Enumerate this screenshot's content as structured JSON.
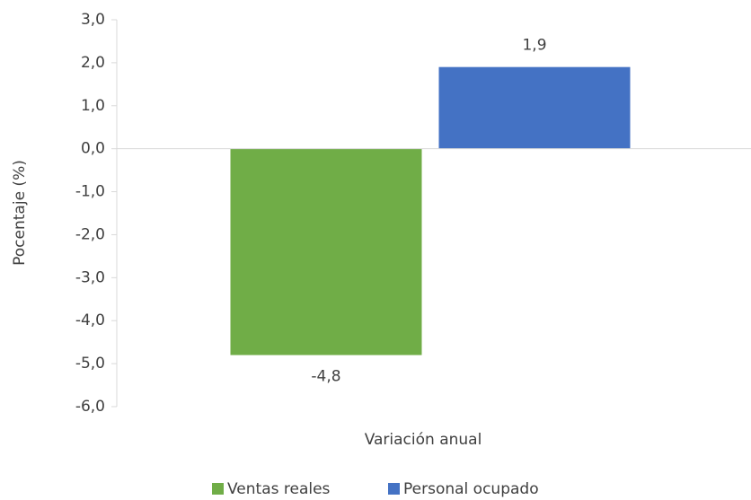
{
  "chart_data": {
    "type": "bar",
    "y_label": "Pocentaje (%)",
    "categories": [
      "Variación anual"
    ],
    "series": [
      {
        "name": "Ventas reales",
        "color": "#70ad47",
        "values": [
          -4.8
        ],
        "value_labels": [
          "-4,8"
        ]
      },
      {
        "name": "Personal ocupado",
        "color": "#4472c4",
        "values": [
          1.9
        ],
        "value_labels": [
          "1,9"
        ]
      }
    ],
    "ylim": [
      -6,
      3
    ],
    "yticks": [
      {
        "value": 3,
        "label": "3,0"
      },
      {
        "value": 2,
        "label": "2,0"
      },
      {
        "value": 1,
        "label": "1,0"
      },
      {
        "value": 0,
        "label": "0,0"
      },
      {
        "value": -1,
        "label": "-1,0"
      },
      {
        "value": -2,
        "label": "-2,0"
      },
      {
        "value": -3,
        "label": "-3,0"
      },
      {
        "value": -4,
        "label": "-4,0"
      },
      {
        "value": -5,
        "label": "-5,0"
      },
      {
        "value": -6,
        "label": "-6,0"
      }
    ],
    "legend": "bottom"
  }
}
